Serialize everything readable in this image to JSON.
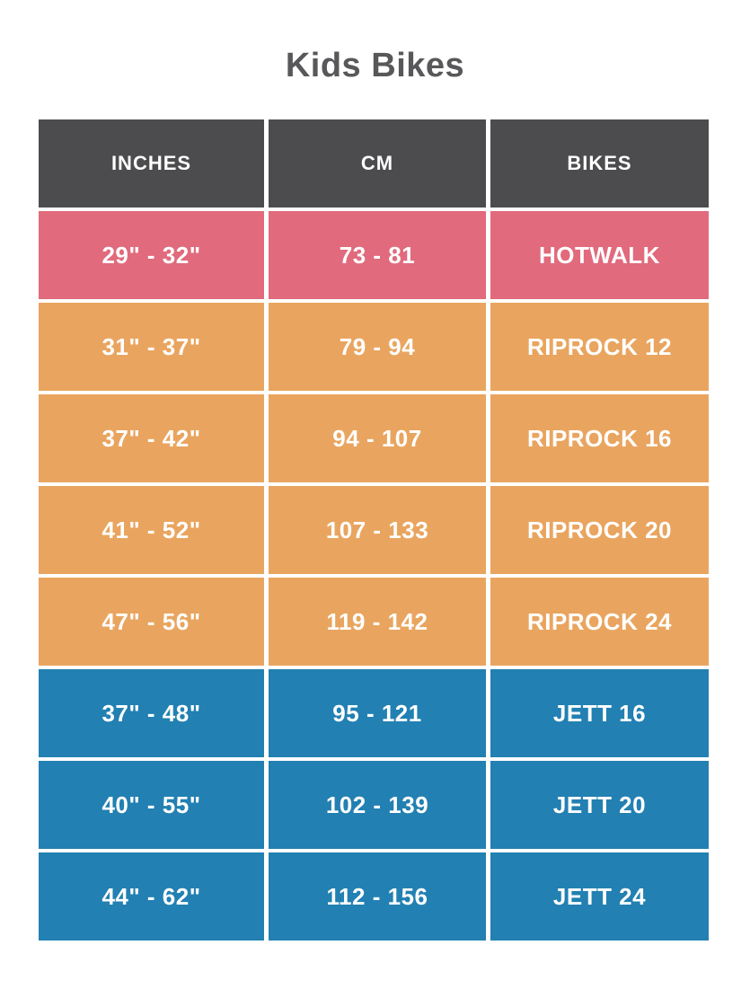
{
  "title": "Kids Bikes",
  "colors": {
    "page_bg": "#ffffff",
    "title_text": "#58585a",
    "header_bg": "#4c4c4e",
    "header_text": "#ffffff",
    "hotwalk_bg": "#e16a7c",
    "riprock_bg": "#e9a55f",
    "jett_bg": "#2280b2",
    "cell_text": "#ffffff"
  },
  "table": {
    "headers": {
      "inches": "INCHES",
      "cm": "CM",
      "bikes": "BIKES"
    },
    "rows": [
      {
        "inches": "29\" - 32\"",
        "cm": "73 - 81",
        "bike": "HOTWALK",
        "series": "hotwalk"
      },
      {
        "inches": "31\" - 37\"",
        "cm": "79 - 94",
        "bike": "RIPROCK 12",
        "series": "riprock"
      },
      {
        "inches": "37\" - 42\"",
        "cm": "94 - 107",
        "bike": "RIPROCK 16",
        "series": "riprock"
      },
      {
        "inches": "41\" - 52\"",
        "cm": "107 - 133",
        "bike": "RIPROCK 20",
        "series": "riprock"
      },
      {
        "inches": "47\" - 56\"",
        "cm": "119 - 142",
        "bike": "RIPROCK 24",
        "series": "riprock"
      },
      {
        "inches": "37\" - 48\"",
        "cm": "95 - 121",
        "bike": "JETT 16",
        "series": "jett"
      },
      {
        "inches": "40\" - 55\"",
        "cm": "102 - 139",
        "bike": "JETT 20",
        "series": "jett"
      },
      {
        "inches": "44\" - 62\"",
        "cm": "112 - 156",
        "bike": "JETT 24",
        "series": "jett"
      }
    ]
  },
  "chart_data": {
    "type": "table",
    "title": "Kids Bikes",
    "columns": [
      "INCHES",
      "CM",
      "BIKES"
    ],
    "rows": [
      [
        "29\" - 32\"",
        "73 - 81",
        "HOTWALK"
      ],
      [
        "31\" - 37\"",
        "79 - 94",
        "RIPROCK 12"
      ],
      [
        "37\" - 42\"",
        "94 - 107",
        "RIPROCK 16"
      ],
      [
        "41\" - 52\"",
        "107 - 133",
        "RIPROCK 20"
      ],
      [
        "47\" - 56\"",
        "119 - 142",
        "RIPROCK 24"
      ],
      [
        "37\" - 48\"",
        "95 - 121",
        "JETT 16"
      ],
      [
        "40\" - 55\"",
        "102 - 139",
        "JETT 20"
      ],
      [
        "44\" - 62\"",
        "112 - 156",
        "JETT 24"
      ]
    ],
    "row_group_colors": {
      "HOTWALK": "#e16a7c",
      "RIPROCK": "#e9a55f",
      "JETT": "#2280b2"
    }
  }
}
